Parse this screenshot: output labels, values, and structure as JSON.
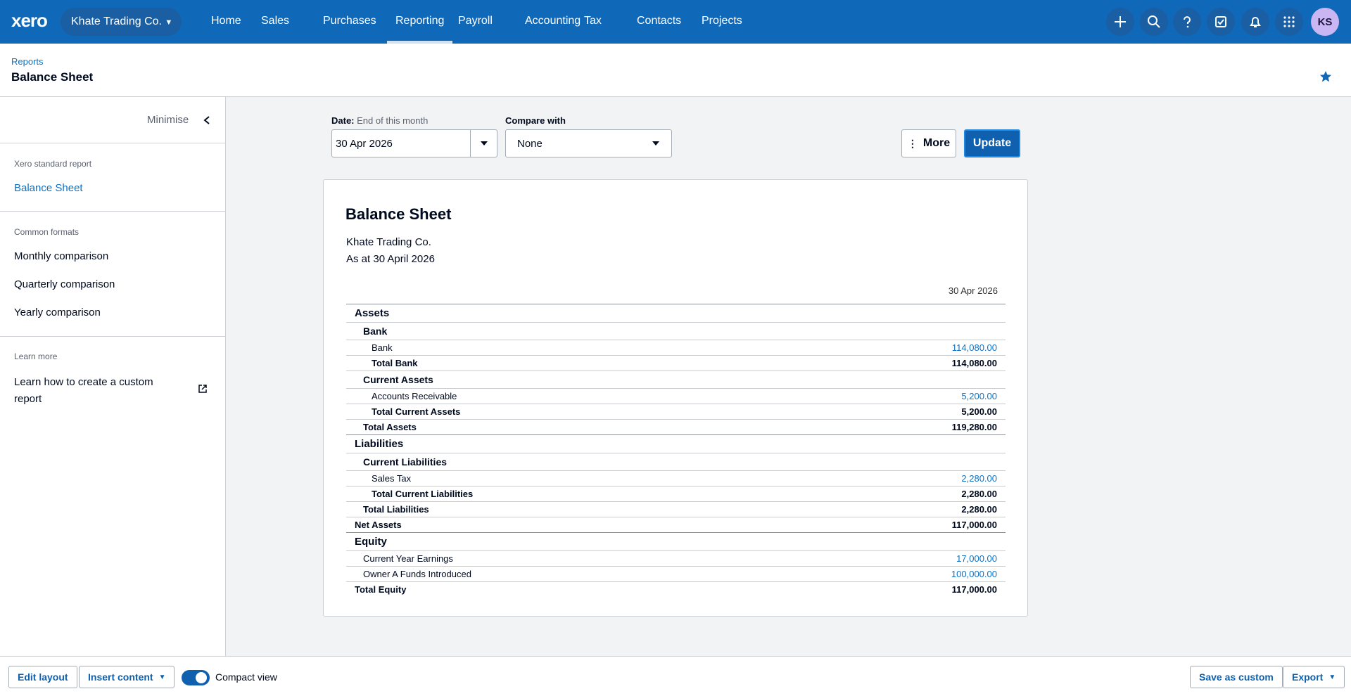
{
  "nav": {
    "logo": "xero",
    "organisation": "Khate Trading Co.",
    "items": [
      "Home",
      "Sales",
      "Purchases",
      "Reporting",
      "Payroll",
      "Accounting",
      "Tax",
      "Contacts",
      "Projects"
    ],
    "avatar": "KS"
  },
  "header": {
    "breadcrumb": "Reports",
    "title": "Balance Sheet"
  },
  "sidebar": {
    "minimise": "Minimise",
    "groups": [
      {
        "heading": "Xero standard report",
        "items": [
          "Balance Sheet"
        ]
      },
      {
        "heading": "Common formats",
        "items": [
          "Monthly comparison",
          "Quarterly comparison",
          "Yearly comparison"
        ]
      },
      {
        "heading": "Learn more",
        "items": [
          "Learn how to create a custom report"
        ]
      }
    ]
  },
  "controls": {
    "date_label": "Date:",
    "date_hint": "End of this month",
    "date_value": "30 Apr 2026",
    "compare_label": "Compare with",
    "compare_value": "None",
    "more": "More",
    "update": "Update"
  },
  "report": {
    "title": "Balance Sheet",
    "company": "Khate Trading Co.",
    "as_at": "As at 30 April 2026",
    "column": "30 Apr 2026",
    "sections": [
      {
        "title": "Assets",
        "groups": [
          {
            "title": "Bank",
            "rows": [
              {
                "label": "Bank",
                "value": "114,080.00"
              }
            ],
            "total": {
              "label": "Total Bank",
              "value": "114,080.00"
            }
          },
          {
            "title": "Current Assets",
            "rows": [
              {
                "label": "Accounts Receivable",
                "value": "5,200.00"
              }
            ],
            "total": {
              "label": "Total Current Assets",
              "value": "5,200.00"
            }
          }
        ],
        "total": {
          "label": "Total Assets",
          "value": "119,280.00"
        }
      },
      {
        "title": "Liabilities",
        "groups": [
          {
            "title": "Current Liabilities",
            "rows": [
              {
                "label": "Sales Tax",
                "value": "2,280.00"
              }
            ],
            "total": {
              "label": "Total Current Liabilities",
              "value": "2,280.00"
            }
          }
        ],
        "total": {
          "label": "Total Liabilities",
          "value": "2,280.00"
        }
      }
    ],
    "net_assets": {
      "label": "Net Assets",
      "value": "117,000.00"
    },
    "equity": {
      "title": "Equity",
      "rows": [
        {
          "label": "Current Year Earnings",
          "value": "17,000.00"
        },
        {
          "label": "Owner A Funds Introduced",
          "value": "100,000.00"
        }
      ],
      "total": {
        "label": "Total Equity",
        "value": "117,000.00"
      }
    }
  },
  "footer": {
    "edit_layout": "Edit layout",
    "insert_content": "Insert content",
    "compact_view": "Compact view",
    "save_as_custom": "Save as custom",
    "export": "Export"
  }
}
